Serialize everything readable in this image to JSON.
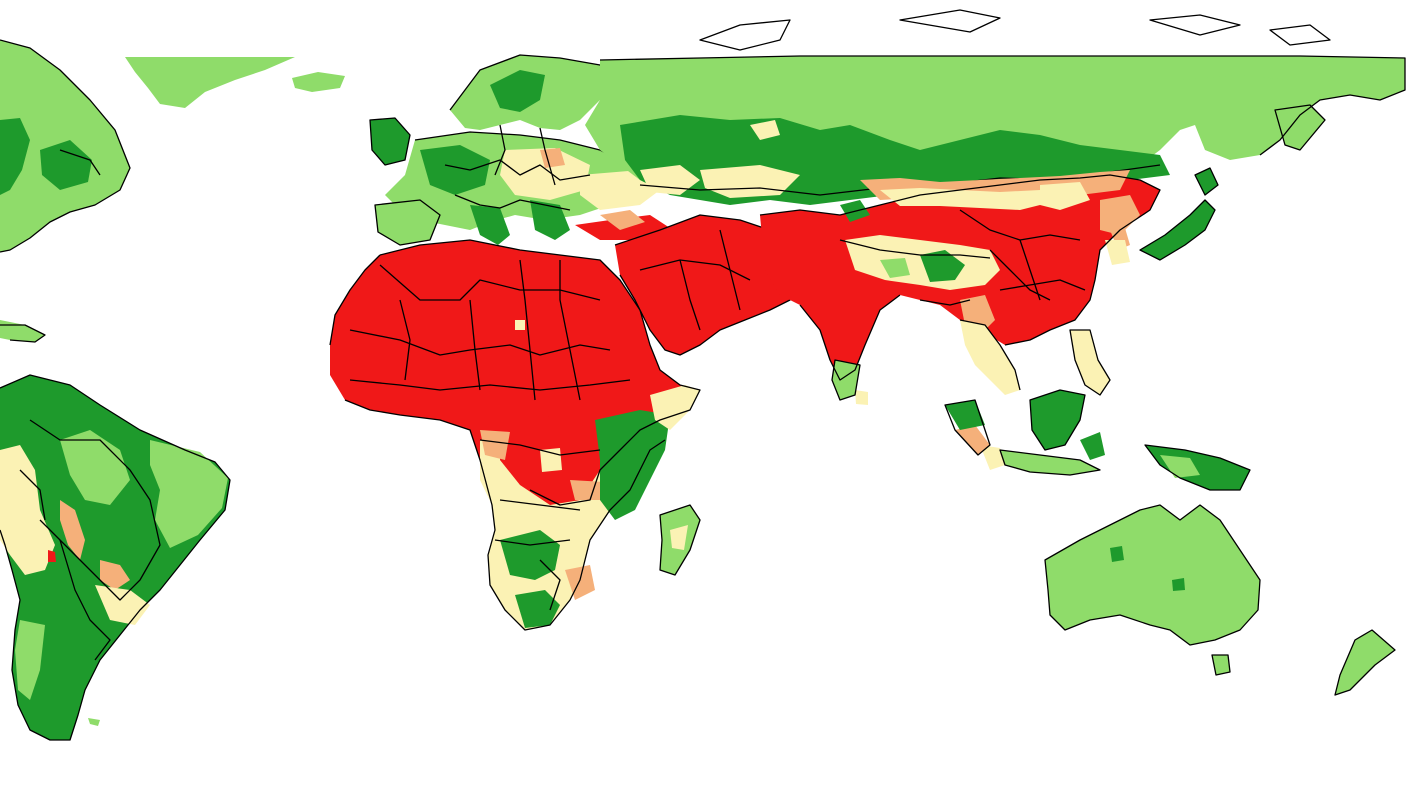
{
  "map": {
    "classes": [
      {
        "key": "very-high",
        "color": "#f01818"
      },
      {
        "key": "high",
        "color": "#f5b07a"
      },
      {
        "key": "moderate",
        "color": "#fbf2b4"
      },
      {
        "key": "low",
        "color": "#8fdc6a"
      },
      {
        "key": "very-low",
        "color": "#1e9a2c"
      }
    ],
    "ocean_color": "#ffffff",
    "border_color": "#000000"
  }
}
